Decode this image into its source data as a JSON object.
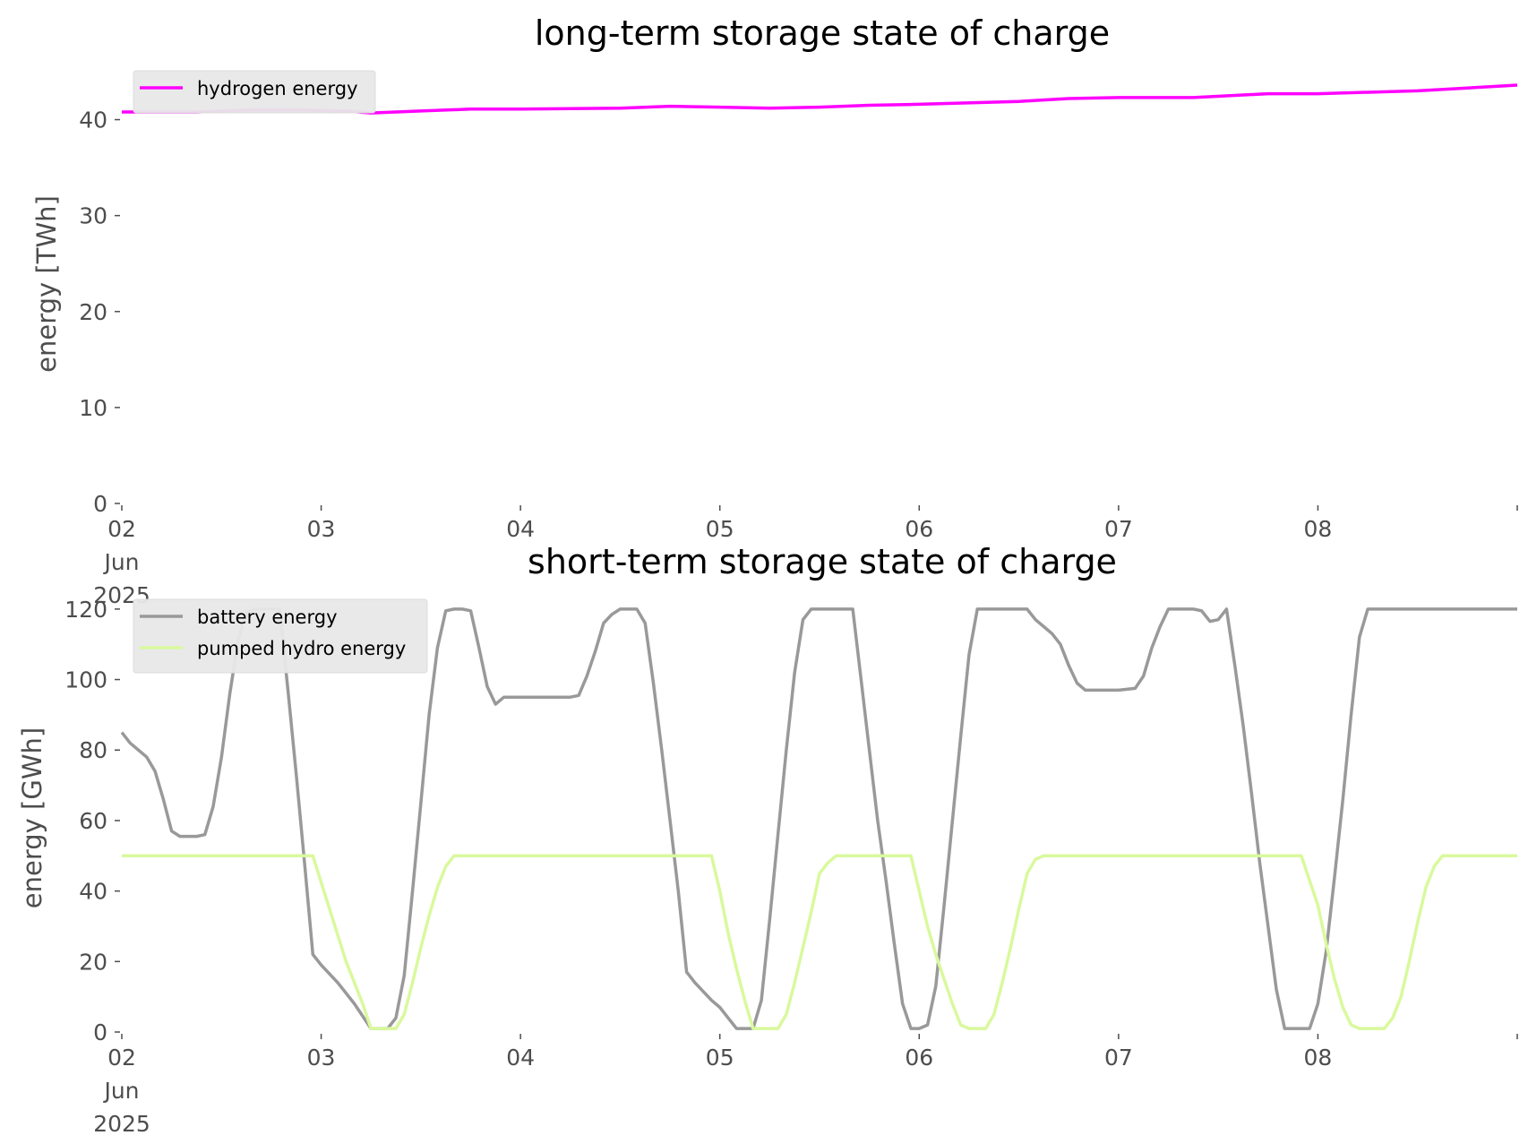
{
  "chart_data": [
    {
      "type": "line",
      "title": "long-term storage state of charge",
      "xlabel": "",
      "ylabel": "energy [TWh]",
      "xlim": [
        "2025-06-02",
        "2025-06-09"
      ],
      "ylim": [
        0,
        45
      ],
      "yticks": [
        0,
        10,
        20,
        30,
        40
      ],
      "xtick_labels": [
        {
          "date": "2025-06-02",
          "lines": [
            "02",
            "Jun",
            "2025"
          ]
        },
        {
          "date": "2025-06-03",
          "lines": [
            "03"
          ]
        },
        {
          "date": "2025-06-04",
          "lines": [
            "04"
          ]
        },
        {
          "date": "2025-06-05",
          "lines": [
            "05"
          ]
        },
        {
          "date": "2025-06-06",
          "lines": [
            "06"
          ]
        },
        {
          "date": "2025-06-07",
          "lines": [
            "07"
          ]
        },
        {
          "date": "2025-06-08",
          "lines": [
            "08"
          ]
        }
      ],
      "grid": false,
      "legend_position": "top-left",
      "series": [
        {
          "name": "hydrogen energy",
          "color": "#ff00ff",
          "points": [
            [
              "2025-06-02T00:00",
              40.8
            ],
            [
              "2025-06-02T09:00",
              40.8
            ],
            [
              "2025-06-02T15:00",
              41.0
            ],
            [
              "2025-06-02T21:00",
              41.0
            ],
            [
              "2025-06-03T03:00",
              40.9
            ],
            [
              "2025-06-03T06:00",
              40.7
            ],
            [
              "2025-06-03T12:00",
              40.9
            ],
            [
              "2025-06-03T18:00",
              41.1
            ],
            [
              "2025-06-04T00:00",
              41.1
            ],
            [
              "2025-06-04T12:00",
              41.2
            ],
            [
              "2025-06-04T18:00",
              41.4
            ],
            [
              "2025-06-05T00:00",
              41.3
            ],
            [
              "2025-06-05T06:00",
              41.2
            ],
            [
              "2025-06-05T12:00",
              41.3
            ],
            [
              "2025-06-05T18:00",
              41.5
            ],
            [
              "2025-06-06T00:00",
              41.6
            ],
            [
              "2025-06-06T12:00",
              41.9
            ],
            [
              "2025-06-06T18:00",
              42.2
            ],
            [
              "2025-06-07T00:00",
              42.3
            ],
            [
              "2025-06-07T09:00",
              42.3
            ],
            [
              "2025-06-07T18:00",
              42.7
            ],
            [
              "2025-06-08T00:00",
              42.7
            ],
            [
              "2025-06-08T12:00",
              43.0
            ],
            [
              "2025-06-08T18:00",
              43.3
            ],
            [
              "2025-06-09T00:00",
              43.6
            ]
          ]
        }
      ]
    },
    {
      "type": "line",
      "title": "short-term storage state of charge",
      "xlabel": "",
      "ylabel": "energy [GWh]",
      "xlim": [
        "2025-06-02",
        "2025-06-09"
      ],
      "ylim": [
        0,
        122
      ],
      "yticks": [
        0,
        20,
        40,
        60,
        80,
        100,
        120
      ],
      "xtick_labels": [
        {
          "date": "2025-06-02",
          "lines": [
            "02",
            "Jun",
            "2025"
          ]
        },
        {
          "date": "2025-06-03",
          "lines": [
            "03"
          ]
        },
        {
          "date": "2025-06-04",
          "lines": [
            "04"
          ]
        },
        {
          "date": "2025-06-05",
          "lines": [
            "05"
          ]
        },
        {
          "date": "2025-06-06",
          "lines": [
            "06"
          ]
        },
        {
          "date": "2025-06-07",
          "lines": [
            "07"
          ]
        },
        {
          "date": "2025-06-08",
          "lines": [
            "08"
          ]
        }
      ],
      "grid": false,
      "legend_position": "top-left",
      "series": [
        {
          "name": "battery energy",
          "color": "#999999",
          "points": [
            [
              "2025-06-02T00:00",
              85
            ],
            [
              "2025-06-02T01:00",
              82
            ],
            [
              "2025-06-02T03:00",
              78
            ],
            [
              "2025-06-02T04:00",
              74
            ],
            [
              "2025-06-02T05:00",
              66
            ],
            [
              "2025-06-02T06:00",
              57
            ],
            [
              "2025-06-02T07:00",
              55.5
            ],
            [
              "2025-06-02T09:00",
              55.5
            ],
            [
              "2025-06-02T10:00",
              56
            ],
            [
              "2025-06-02T11:00",
              64
            ],
            [
              "2025-06-02T12:00",
              78
            ],
            [
              "2025-06-02T13:00",
              96
            ],
            [
              "2025-06-02T14:00",
              111
            ],
            [
              "2025-06-02T15:00",
              119
            ],
            [
              "2025-06-02T16:00",
              120
            ],
            [
              "2025-06-02T19:00",
              120
            ],
            [
              "2025-06-02T20:00",
              97
            ],
            [
              "2025-06-02T21:00",
              73
            ],
            [
              "2025-06-02T22:00",
              48
            ],
            [
              "2025-06-02T23:00",
              22
            ],
            [
              "2025-06-03T00:00",
              19
            ],
            [
              "2025-06-03T02:00",
              14
            ],
            [
              "2025-06-03T04:00",
              8
            ],
            [
              "2025-06-03T06:00",
              1
            ],
            [
              "2025-06-03T08:00",
              1
            ],
            [
              "2025-06-03T09:00",
              4
            ],
            [
              "2025-06-03T10:00",
              16
            ],
            [
              "2025-06-03T11:00",
              40
            ],
            [
              "2025-06-03T12:00",
              65
            ],
            [
              "2025-06-03T13:00",
              90
            ],
            [
              "2025-06-03T14:00",
              109
            ],
            [
              "2025-06-03T15:00",
              119.5
            ],
            [
              "2025-06-03T16:00",
              120
            ],
            [
              "2025-06-03T17:00",
              120
            ],
            [
              "2025-06-03T18:00",
              119.5
            ],
            [
              "2025-06-03T19:00",
              109
            ],
            [
              "2025-06-03T20:00",
              98
            ],
            [
              "2025-06-03T21:00",
              93
            ],
            [
              "2025-06-03T22:00",
              95
            ],
            [
              "2025-06-04T06:00",
              95
            ],
            [
              "2025-06-04T07:00",
              95.5
            ],
            [
              "2025-06-04T08:00",
              101
            ],
            [
              "2025-06-04T09:00",
              108
            ],
            [
              "2025-06-04T10:00",
              116
            ],
            [
              "2025-06-04T11:00",
              118.5
            ],
            [
              "2025-06-04T12:00",
              120
            ],
            [
              "2025-06-04T14:00",
              120
            ],
            [
              "2025-06-04T15:00",
              116
            ],
            [
              "2025-06-04T16:00",
              99
            ],
            [
              "2025-06-04T17:00",
              80
            ],
            [
              "2025-06-04T18:00",
              60
            ],
            [
              "2025-06-04T19:00",
              40
            ],
            [
              "2025-06-04T20:00",
              17
            ],
            [
              "2025-06-04T21:00",
              14
            ],
            [
              "2025-06-04T23:00",
              9
            ],
            [
              "2025-06-05T00:00",
              7
            ],
            [
              "2025-06-05T02:00",
              1
            ],
            [
              "2025-06-05T04:00",
              1
            ],
            [
              "2025-06-05T05:00",
              9
            ],
            [
              "2025-06-05T06:00",
              32
            ],
            [
              "2025-06-05T07:00",
              56
            ],
            [
              "2025-06-05T08:00",
              80
            ],
            [
              "2025-06-05T09:00",
              102
            ],
            [
              "2025-06-05T10:00",
              117
            ],
            [
              "2025-06-05T11:00",
              120
            ],
            [
              "2025-06-05T16:00",
              120
            ],
            [
              "2025-06-05T17:00",
              100
            ],
            [
              "2025-06-05T18:00",
              80
            ],
            [
              "2025-06-05T19:00",
              60
            ],
            [
              "2025-06-05T20:00",
              43
            ],
            [
              "2025-06-05T21:00",
              25
            ],
            [
              "2025-06-05T22:00",
              8
            ],
            [
              "2025-06-05T23:00",
              1
            ],
            [
              "2025-06-06T00:00",
              1
            ],
            [
              "2025-06-06T01:00",
              2
            ],
            [
              "2025-06-06T02:00",
              13
            ],
            [
              "2025-06-06T03:00",
              36
            ],
            [
              "2025-06-06T04:00",
              60
            ],
            [
              "2025-06-06T05:00",
              84
            ],
            [
              "2025-06-06T06:00",
              107
            ],
            [
              "2025-06-06T07:00",
              120
            ],
            [
              "2025-06-06T13:00",
              120
            ],
            [
              "2025-06-06T14:00",
              117
            ],
            [
              "2025-06-06T15:00",
              115
            ],
            [
              "2025-06-06T16:00",
              113
            ],
            [
              "2025-06-06T17:00",
              110
            ],
            [
              "2025-06-06T18:00",
              104
            ],
            [
              "2025-06-06T19:00",
              99
            ],
            [
              "2025-06-06T20:00",
              97
            ],
            [
              "2025-06-07T00:00",
              97
            ],
            [
              "2025-06-07T02:00",
              97.5
            ],
            [
              "2025-06-07T03:00",
              101
            ],
            [
              "2025-06-07T04:00",
              109
            ],
            [
              "2025-06-07T05:00",
              115
            ],
            [
              "2025-06-07T06:00",
              120
            ],
            [
              "2025-06-07T09:00",
              120
            ],
            [
              "2025-06-07T10:00",
              119.5
            ],
            [
              "2025-06-07T11:00",
              116.5
            ],
            [
              "2025-06-07T12:00",
              117
            ],
            [
              "2025-06-07T13:00",
              120
            ],
            [
              "2025-06-07T14:00",
              104
            ],
            [
              "2025-06-07T15:00",
              87
            ],
            [
              "2025-06-07T16:00",
              68
            ],
            [
              "2025-06-07T17:00",
              48
            ],
            [
              "2025-06-07T18:00",
              30
            ],
            [
              "2025-06-07T19:00",
              12
            ],
            [
              "2025-06-07T20:00",
              1
            ],
            [
              "2025-06-07T23:00",
              1
            ],
            [
              "2025-06-08T00:00",
              8
            ],
            [
              "2025-06-08T01:00",
              23
            ],
            [
              "2025-06-08T02:00",
              44
            ],
            [
              "2025-06-08T03:00",
              66
            ],
            [
              "2025-06-08T04:00",
              90
            ],
            [
              "2025-06-08T05:00",
              112
            ],
            [
              "2025-06-08T06:00",
              120
            ],
            [
              "2025-06-09T00:00",
              120
            ]
          ]
        },
        {
          "name": "pumped hydro energy",
          "color": "#d9f99d",
          "points": [
            [
              "2025-06-02T00:00",
              50
            ],
            [
              "2025-06-02T23:00",
              50
            ],
            [
              "2025-06-03T01:00",
              35
            ],
            [
              "2025-06-03T03:00",
              20
            ],
            [
              "2025-06-03T05:00",
              8
            ],
            [
              "2025-06-03T06:00",
              1
            ],
            [
              "2025-06-03T09:00",
              1
            ],
            [
              "2025-06-03T10:00",
              5
            ],
            [
              "2025-06-03T11:00",
              14
            ],
            [
              "2025-06-03T12:00",
              24
            ],
            [
              "2025-06-03T13:00",
              33
            ],
            [
              "2025-06-03T14:00",
              41
            ],
            [
              "2025-06-03T15:00",
              47
            ],
            [
              "2025-06-03T16:00",
              50
            ],
            [
              "2025-06-04T23:00",
              50
            ],
            [
              "2025-06-05T00:00",
              40
            ],
            [
              "2025-06-05T01:00",
              28
            ],
            [
              "2025-06-05T02:00",
              18
            ],
            [
              "2025-06-05T03:00",
              9
            ],
            [
              "2025-06-05T04:00",
              1
            ],
            [
              "2025-06-05T07:00",
              1
            ],
            [
              "2025-06-05T08:00",
              5
            ],
            [
              "2025-06-05T09:00",
              14
            ],
            [
              "2025-06-05T10:00",
              24
            ],
            [
              "2025-06-05T11:00",
              34
            ],
            [
              "2025-06-05T12:00",
              45
            ],
            [
              "2025-06-05T13:00",
              48
            ],
            [
              "2025-06-05T14:00",
              50
            ],
            [
              "2025-06-05T23:00",
              50
            ],
            [
              "2025-06-06T00:00",
              40
            ],
            [
              "2025-06-06T01:00",
              30
            ],
            [
              "2025-06-06T02:00",
              22
            ],
            [
              "2025-06-06T03:00",
              15
            ],
            [
              "2025-06-06T04:00",
              8
            ],
            [
              "2025-06-06T05:00",
              2
            ],
            [
              "2025-06-06T06:00",
              1
            ],
            [
              "2025-06-06T08:00",
              1
            ],
            [
              "2025-06-06T09:00",
              5
            ],
            [
              "2025-06-06T10:00",
              14
            ],
            [
              "2025-06-06T11:00",
              24
            ],
            [
              "2025-06-06T12:00",
              35
            ],
            [
              "2025-06-06T13:00",
              45
            ],
            [
              "2025-06-06T14:00",
              49
            ],
            [
              "2025-06-06T15:00",
              50
            ],
            [
              "2025-06-07T22:00",
              50
            ],
            [
              "2025-06-08T00:00",
              36
            ],
            [
              "2025-06-08T01:00",
              25
            ],
            [
              "2025-06-08T02:00",
              15
            ],
            [
              "2025-06-08T03:00",
              7
            ],
            [
              "2025-06-08T04:00",
              2
            ],
            [
              "2025-06-08T05:00",
              1
            ],
            [
              "2025-06-08T08:00",
              1
            ],
            [
              "2025-06-08T09:00",
              4
            ],
            [
              "2025-06-08T10:00",
              10
            ],
            [
              "2025-06-08T11:00",
              20
            ],
            [
              "2025-06-08T12:00",
              31
            ],
            [
              "2025-06-08T13:00",
              41
            ],
            [
              "2025-06-08T14:00",
              47
            ],
            [
              "2025-06-08T15:00",
              50
            ],
            [
              "2025-06-09T00:00",
              50
            ]
          ]
        }
      ]
    }
  ]
}
